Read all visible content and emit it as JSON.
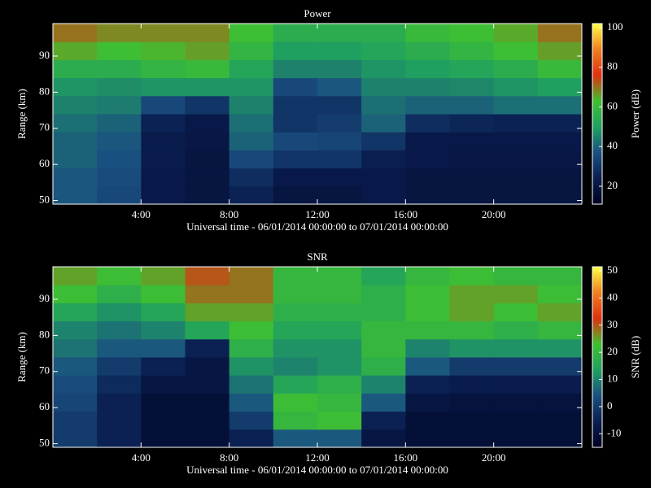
{
  "chart_data": [
    {
      "type": "heatmap",
      "title": "Power",
      "xlabel": "Universal time - 06/01/2014 00:00:00 to 07/01/2014 00:00:00",
      "ylabel": "Range (km)",
      "colorbar_label": "Power (dB)",
      "xbins": [
        0,
        2,
        4,
        6,
        8,
        10,
        12,
        14,
        16,
        18,
        20,
        22,
        24
      ],
      "ybins": [
        49,
        54,
        59,
        64,
        69,
        74,
        79,
        84,
        89,
        94,
        99
      ],
      "xlim": [
        0,
        24
      ],
      "ylim": [
        49,
        99
      ],
      "xticks": [
        {
          "value": 4,
          "label": "4:00"
        },
        {
          "value": 8,
          "label": "8:00"
        },
        {
          "value": 12,
          "label": "12:00"
        },
        {
          "value": 16,
          "label": "16:00"
        },
        {
          "value": 20,
          "label": "20:00"
        }
      ],
      "yticks": [
        50,
        60,
        70,
        80,
        90
      ],
      "zlim": [
        11,
        102
      ],
      "zticks": [
        20,
        40,
        60,
        80,
        100
      ],
      "colormap": [
        "#000020",
        "#0a1e50",
        "#1a5080",
        "#20a060",
        "#40c030",
        "#e03010",
        "#f08020",
        "#ffff40"
      ],
      "z": [
        [
          38,
          35,
          22,
          20,
          25,
          20,
          20,
          22,
          20,
          20,
          20,
          20
        ],
        [
          38,
          36,
          22,
          20,
          28,
          22,
          22,
          22,
          20,
          20,
          20,
          20
        ],
        [
          40,
          37,
          23,
          20,
          35,
          30,
          30,
          24,
          22,
          21,
          21,
          21
        ],
        [
          40,
          38,
          23,
          21,
          40,
          35,
          34,
          30,
          22,
          22,
          22,
          22
        ],
        [
          42,
          40,
          25,
          22,
          42,
          30,
          32,
          40,
          28,
          26,
          25,
          25
        ],
        [
          45,
          44,
          35,
          30,
          45,
          30,
          30,
          42,
          40,
          40,
          42,
          42
        ],
        [
          48,
          47,
          48,
          48,
          48,
          35,
          38,
          45,
          45,
          46,
          48,
          50
        ],
        [
          55,
          55,
          58,
          60,
          52,
          45,
          45,
          48,
          50,
          52,
          55,
          60
        ],
        [
          65,
          62,
          64,
          66,
          58,
          50,
          50,
          52,
          55,
          58,
          62,
          66
        ],
        [
          70,
          68,
          68,
          68,
          62,
          55,
          55,
          55,
          60,
          62,
          65,
          70
        ]
      ]
    },
    {
      "type": "heatmap",
      "title": "SNR",
      "xlabel": "Universal time - 06/01/2014 00:00:00 to 07/01/2014 00:00:00",
      "ylabel": "Range (km)",
      "colorbar_label": "SNR (dB)",
      "xbins": [
        0,
        2,
        4,
        6,
        8,
        10,
        12,
        14,
        16,
        18,
        20,
        22,
        24
      ],
      "ybins": [
        49,
        54,
        59,
        64,
        69,
        74,
        79,
        84,
        89,
        94,
        99
      ],
      "xlim": [
        0,
        24
      ],
      "ylim": [
        49,
        99
      ],
      "xticks": [
        {
          "value": 4,
          "label": "4:00"
        },
        {
          "value": 8,
          "label": "8:00"
        },
        {
          "value": 12,
          "label": "12:00"
        },
        {
          "value": 16,
          "label": "16:00"
        },
        {
          "value": 20,
          "label": "20:00"
        }
      ],
      "yticks": [
        50,
        60,
        70,
        80,
        90
      ],
      "zlim": [
        -15,
        51.5
      ],
      "zticks": [
        -10,
        0,
        10,
        20,
        30,
        40,
        50
      ],
      "colormap": [
        "#000020",
        "#0a1e50",
        "#1a5080",
        "#20a060",
        "#40c030",
        "#e03010",
        "#f08020",
        "#ffff40"
      ],
      "z": [
        [
          0,
          -5,
          -10,
          -10,
          -5,
          5,
          5,
          -8,
          -10,
          -10,
          -10,
          -10
        ],
        [
          0,
          -5,
          -10,
          -10,
          0,
          20,
          22,
          -5,
          -10,
          -10,
          -10,
          -10
        ],
        [
          2,
          -5,
          -10,
          -10,
          5,
          22,
          20,
          5,
          -8,
          -9,
          -9,
          -9
        ],
        [
          3,
          -3,
          -8,
          -8,
          8,
          15,
          18,
          10,
          -5,
          -6,
          -6,
          -6
        ],
        [
          5,
          0,
          -5,
          -8,
          12,
          10,
          12,
          18,
          5,
          0,
          0,
          0
        ],
        [
          8,
          5,
          5,
          -5,
          18,
          12,
          12,
          20,
          10,
          12,
          12,
          12
        ],
        [
          10,
          8,
          10,
          15,
          22,
          15,
          15,
          20,
          20,
          20,
          18,
          20
        ],
        [
          15,
          12,
          15,
          25,
          25,
          18,
          18,
          18,
          22,
          25,
          22,
          25
        ],
        [
          22,
          18,
          22,
          28,
          28,
          20,
          20,
          18,
          22,
          25,
          25,
          22
        ],
        [
          25,
          22,
          25,
          30,
          28,
          20,
          20,
          15,
          20,
          22,
          20,
          20
        ]
      ]
    }
  ]
}
